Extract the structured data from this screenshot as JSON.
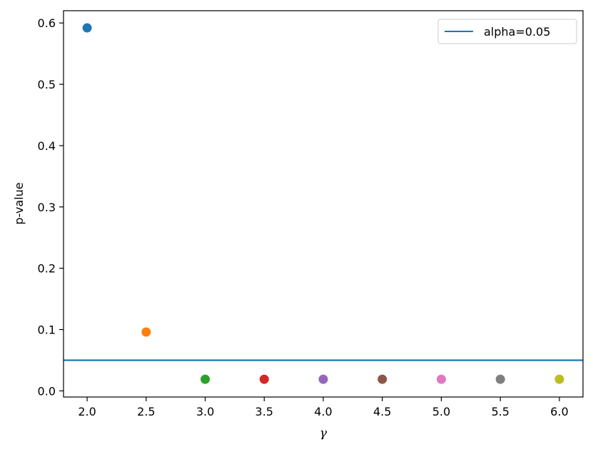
{
  "chart_data": {
    "type": "scatter",
    "title": "",
    "xlabel": "γ",
    "ylabel": "p-value",
    "xlim": [
      1.8,
      6.2
    ],
    "ylim": [
      -0.01,
      0.62
    ],
    "xticks": [
      2.0,
      2.5,
      3.0,
      3.5,
      4.0,
      4.5,
      5.0,
      5.5,
      6.0
    ],
    "xtick_labels": [
      "2.0",
      "2.5",
      "3.0",
      "3.5",
      "4.0",
      "4.5",
      "5.0",
      "5.5",
      "6.0"
    ],
    "yticks": [
      0.0,
      0.1,
      0.2,
      0.3,
      0.4,
      0.5,
      0.6
    ],
    "ytick_labels": [
      "0.0",
      "0.1",
      "0.2",
      "0.3",
      "0.4",
      "0.5",
      "0.6"
    ],
    "grid": false,
    "points": [
      {
        "x": 2.0,
        "y": 0.592,
        "color": "#1f77b4"
      },
      {
        "x": 2.5,
        "y": 0.096,
        "color": "#ff7f0e"
      },
      {
        "x": 3.0,
        "y": 0.019,
        "color": "#2ca02c"
      },
      {
        "x": 3.5,
        "y": 0.019,
        "color": "#d62728"
      },
      {
        "x": 4.0,
        "y": 0.019,
        "color": "#9467bd"
      },
      {
        "x": 4.5,
        "y": 0.019,
        "color": "#8c564b"
      },
      {
        "x": 5.0,
        "y": 0.019,
        "color": "#e377c2"
      },
      {
        "x": 5.5,
        "y": 0.019,
        "color": "#7f7f7f"
      },
      {
        "x": 6.0,
        "y": 0.019,
        "color": "#bcbd22"
      }
    ],
    "hline": {
      "y": 0.05,
      "color": "#1f77b4",
      "label": "alpha=0.05"
    },
    "legend": {
      "placement": "upper-right",
      "entries": [
        "alpha=0.05"
      ]
    }
  }
}
